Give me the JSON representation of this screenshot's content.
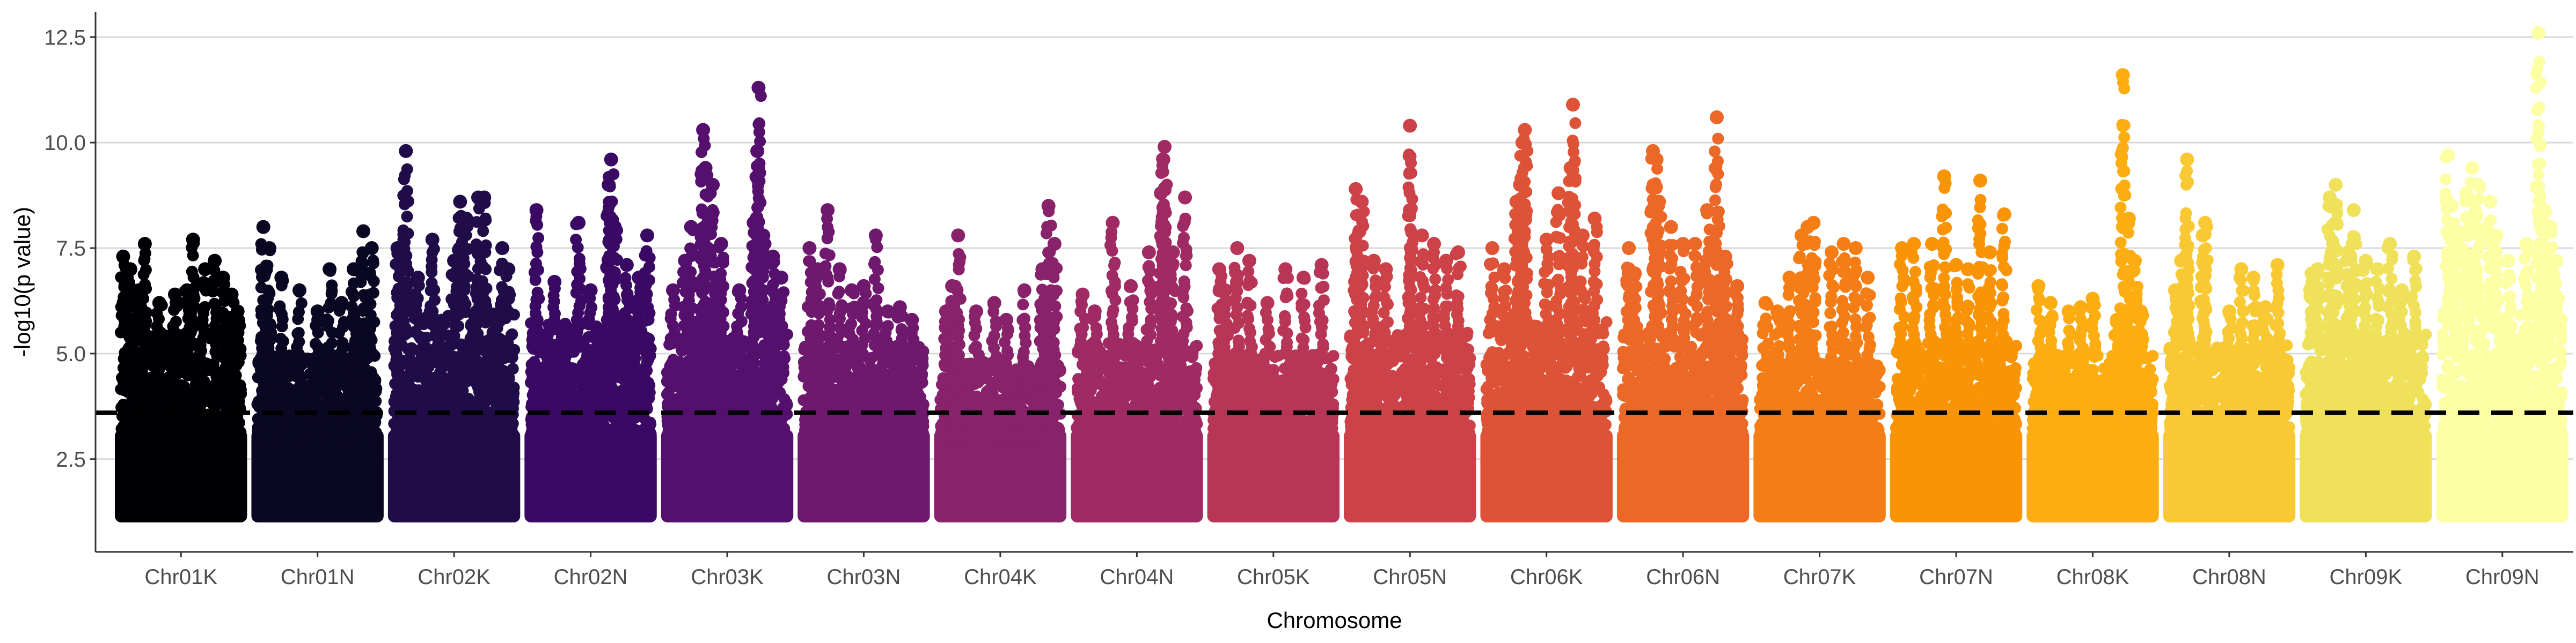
{
  "chart_data": {
    "type": "scatter",
    "subtype": "manhattan",
    "title": "",
    "xlabel": "Chromosome",
    "ylabel": "-log10(p value)",
    "categories": [
      "Chr01K",
      "Chr01N",
      "Chr02K",
      "Chr02N",
      "Chr03K",
      "Chr03N",
      "Chr04K",
      "Chr04N",
      "Chr05K",
      "Chr05N",
      "Chr06K",
      "Chr06N",
      "Chr07K",
      "Chr07N",
      "Chr08K",
      "Chr08N",
      "Chr09K",
      "Chr09N"
    ],
    "yticks": [
      2.5,
      5.0,
      7.5,
      10.0,
      12.5
    ],
    "ytick_labels": [
      "2.5",
      "5.0",
      "7.5",
      "10.0",
      "12.5"
    ],
    "ylim": [
      0.3,
      13.1
    ],
    "grid": "horizontal major",
    "threshold": {
      "value": 3.6,
      "style": "dashed",
      "color": "#000000"
    },
    "colors": [
      "#000004",
      "#0a0722",
      "#1f0c48",
      "#3a0963",
      "#550f6d",
      "#6f196e",
      "#88226a",
      "#a02a63",
      "#b73557",
      "#cc4248",
      "#de5238",
      "#ec6826",
      "#f57d15",
      "#fa9407",
      "#fcad12",
      "#f8c932",
      "#f0e15a",
      "#fcffa4"
    ],
    "series": [
      {
        "name": "Chr01K",
        "base_max": 5.5,
        "peaks": [
          [
            0.02,
            7.3
          ],
          [
            0.05,
            6.8
          ],
          [
            0.08,
            7.0
          ],
          [
            0.15,
            6.5
          ],
          [
            0.2,
            7.6
          ],
          [
            0.32,
            6.2
          ],
          [
            0.45,
            6.4
          ],
          [
            0.55,
            6.5
          ],
          [
            0.6,
            7.7
          ],
          [
            0.7,
            7.0
          ],
          [
            0.78,
            7.2
          ],
          [
            0.85,
            6.8
          ],
          [
            0.92,
            6.4
          ],
          [
            0.97,
            6.0
          ]
        ]
      },
      {
        "name": "Chr01N",
        "base_max": 5.0,
        "peaks": [
          [
            0.05,
            8.0
          ],
          [
            0.1,
            7.5
          ],
          [
            0.2,
            6.8
          ],
          [
            0.35,
            6.5
          ],
          [
            0.5,
            6.0
          ],
          [
            0.6,
            7.0
          ],
          [
            0.7,
            6.2
          ],
          [
            0.8,
            7.0
          ],
          [
            0.88,
            7.9
          ],
          [
            0.95,
            7.5
          ]
        ]
      },
      {
        "name": "Chr02K",
        "base_max": 6.0,
        "peaks": [
          [
            0.03,
            7.5
          ],
          [
            0.1,
            7.0
          ],
          [
            0.1,
            9.8
          ],
          [
            0.2,
            6.8
          ],
          [
            0.32,
            7.7
          ],
          [
            0.5,
            7.2
          ],
          [
            0.55,
            8.6
          ],
          [
            0.6,
            8.2
          ],
          [
            0.7,
            8.7
          ],
          [
            0.75,
            8.7
          ],
          [
            0.9,
            7.5
          ],
          [
            0.95,
            7.0
          ]
        ]
      },
      {
        "name": "Chr02N",
        "base_max": 5.8,
        "peaks": [
          [
            0.05,
            8.4
          ],
          [
            0.2,
            6.7
          ],
          [
            0.4,
            8.1
          ],
          [
            0.5,
            6.5
          ],
          [
            0.65,
            9.0
          ],
          [
            0.67,
            9.6
          ],
          [
            0.7,
            8.0
          ],
          [
            0.8,
            7.1
          ],
          [
            0.9,
            6.8
          ],
          [
            0.97,
            7.8
          ]
        ]
      },
      {
        "name": "Chr03K",
        "base_max": 5.5,
        "peaks": [
          [
            0.05,
            6.5
          ],
          [
            0.15,
            7.2
          ],
          [
            0.2,
            8.0
          ],
          [
            0.3,
            10.3
          ],
          [
            0.32,
            9.4
          ],
          [
            0.38,
            9.0
          ],
          [
            0.45,
            7.6
          ],
          [
            0.6,
            6.5
          ],
          [
            0.72,
            8.1
          ],
          [
            0.75,
            9.8
          ],
          [
            0.76,
            11.3
          ],
          [
            0.8,
            7.8
          ],
          [
            0.88,
            7.3
          ],
          [
            0.95,
            6.8
          ]
        ]
      },
      {
        "name": "Chr03N",
        "base_max": 5.2,
        "peaks": [
          [
            0.05,
            7.5
          ],
          [
            0.12,
            7.0
          ],
          [
            0.2,
            8.4
          ],
          [
            0.3,
            7.0
          ],
          [
            0.4,
            6.5
          ],
          [
            0.5,
            6.6
          ],
          [
            0.6,
            7.8
          ],
          [
            0.7,
            6.0
          ],
          [
            0.8,
            6.1
          ],
          [
            0.9,
            5.8
          ]
        ]
      },
      {
        "name": "Chr04K",
        "base_max": 4.8,
        "peaks": [
          [
            0.05,
            6.0
          ],
          [
            0.1,
            6.6
          ],
          [
            0.15,
            7.8
          ],
          [
            0.3,
            6.0
          ],
          [
            0.45,
            6.2
          ],
          [
            0.55,
            5.8
          ],
          [
            0.7,
            6.5
          ],
          [
            0.85,
            7.0
          ],
          [
            0.9,
            8.5
          ],
          [
            0.95,
            7.6
          ]
        ]
      },
      {
        "name": "Chr04N",
        "base_max": 5.3,
        "peaks": [
          [
            0.05,
            6.4
          ],
          [
            0.15,
            6.0
          ],
          [
            0.3,
            8.1
          ],
          [
            0.45,
            6.6
          ],
          [
            0.6,
            7.4
          ],
          [
            0.7,
            8.8
          ],
          [
            0.72,
            9.6
          ],
          [
            0.73,
            9.9
          ],
          [
            0.8,
            7.4
          ],
          [
            0.9,
            8.7
          ]
        ]
      },
      {
        "name": "Chr05K",
        "base_max": 5.0,
        "peaks": [
          [
            0.05,
            7.0
          ],
          [
            0.1,
            6.5
          ],
          [
            0.2,
            7.5
          ],
          [
            0.3,
            7.2
          ],
          [
            0.45,
            6.2
          ],
          [
            0.6,
            7.0
          ],
          [
            0.75,
            6.8
          ],
          [
            0.9,
            7.1
          ]
        ]
      },
      {
        "name": "Chr05N",
        "base_max": 5.5,
        "peaks": [
          [
            0.05,
            8.9
          ],
          [
            0.1,
            8.6
          ],
          [
            0.08,
            7.9
          ],
          [
            0.2,
            7.2
          ],
          [
            0.3,
            7.0
          ],
          [
            0.5,
            10.4
          ],
          [
            0.5,
            8.4
          ],
          [
            0.6,
            7.8
          ],
          [
            0.7,
            7.6
          ],
          [
            0.8,
            7.2
          ],
          [
            0.9,
            7.4
          ]
        ]
      },
      {
        "name": "Chr06K",
        "base_max": 5.8,
        "peaks": [
          [
            0.05,
            7.5
          ],
          [
            0.15,
            7.0
          ],
          [
            0.25,
            8.6
          ],
          [
            0.28,
            9.0
          ],
          [
            0.3,
            10.0
          ],
          [
            0.32,
            10.3
          ],
          [
            0.5,
            7.7
          ],
          [
            0.6,
            8.8
          ],
          [
            0.7,
            9.4
          ],
          [
            0.72,
            10.9
          ],
          [
            0.8,
            7.8
          ],
          [
            0.9,
            8.2
          ]
        ]
      },
      {
        "name": "Chr06N",
        "base_max": 5.5,
        "peaks": [
          [
            0.05,
            7.5
          ],
          [
            0.1,
            6.9
          ],
          [
            0.25,
            9.8
          ],
          [
            0.28,
            9.6
          ],
          [
            0.3,
            8.6
          ],
          [
            0.4,
            8.0
          ],
          [
            0.5,
            7.6
          ],
          [
            0.6,
            7.6
          ],
          [
            0.7,
            8.4
          ],
          [
            0.78,
            10.6
          ],
          [
            0.85,
            7.3
          ],
          [
            0.95,
            6.6
          ]
        ]
      },
      {
        "name": "Chr07K",
        "base_max": 4.8,
        "peaks": [
          [
            0.05,
            6.2
          ],
          [
            0.15,
            6.0
          ],
          [
            0.25,
            6.8
          ],
          [
            0.35,
            7.8
          ],
          [
            0.4,
            8.0
          ],
          [
            0.45,
            8.1
          ],
          [
            0.6,
            7.4
          ],
          [
            0.7,
            7.6
          ],
          [
            0.8,
            7.5
          ],
          [
            0.9,
            6.8
          ]
        ]
      },
      {
        "name": "Chr07N",
        "base_max": 5.3,
        "peaks": [
          [
            0.05,
            7.5
          ],
          [
            0.15,
            7.6
          ],
          [
            0.3,
            7.6
          ],
          [
            0.4,
            9.2
          ],
          [
            0.5,
            7.1
          ],
          [
            0.6,
            7.0
          ],
          [
            0.7,
            9.1
          ],
          [
            0.78,
            7.4
          ],
          [
            0.9,
            8.3
          ]
        ]
      },
      {
        "name": "Chr08K",
        "base_max": 5.0,
        "peaks": [
          [
            0.05,
            6.6
          ],
          [
            0.15,
            6.2
          ],
          [
            0.3,
            6.0
          ],
          [
            0.4,
            6.1
          ],
          [
            0.5,
            6.3
          ],
          [
            0.7,
            5.8
          ],
          [
            0.75,
            11.6
          ],
          [
            0.8,
            8.2
          ],
          [
            0.85,
            7.2
          ],
          [
            0.9,
            6.0
          ]
        ]
      },
      {
        "name": "Chr08N",
        "base_max": 5.2,
        "peaks": [
          [
            0.05,
            6.5
          ],
          [
            0.1,
            7.2
          ],
          [
            0.15,
            9.6
          ],
          [
            0.28,
            7.8
          ],
          [
            0.3,
            8.1
          ],
          [
            0.5,
            6.0
          ],
          [
            0.6,
            7.0
          ],
          [
            0.7,
            6.8
          ],
          [
            0.8,
            6.1
          ],
          [
            0.9,
            7.1
          ]
        ]
      },
      {
        "name": "Chr09K",
        "base_max": 5.5,
        "peaks": [
          [
            0.05,
            6.9
          ],
          [
            0.1,
            7.0
          ],
          [
            0.2,
            8.7
          ],
          [
            0.25,
            9.0
          ],
          [
            0.35,
            7.4
          ],
          [
            0.4,
            8.4
          ],
          [
            0.5,
            7.2
          ],
          [
            0.6,
            7.0
          ],
          [
            0.7,
            7.6
          ],
          [
            0.8,
            6.5
          ],
          [
            0.9,
            7.3
          ]
        ]
      },
      {
        "name": "Chr09N",
        "base_max": 6.0,
        "peaks": [
          [
            0.05,
            9.7
          ],
          [
            0.08,
            8.5
          ],
          [
            0.12,
            7.9
          ],
          [
            0.2,
            8.8
          ],
          [
            0.25,
            9.4
          ],
          [
            0.3,
            9.0
          ],
          [
            0.4,
            8.6
          ],
          [
            0.45,
            7.8
          ],
          [
            0.55,
            7.2
          ],
          [
            0.7,
            7.6
          ],
          [
            0.8,
            12.6
          ],
          [
            0.85,
            8.4
          ],
          [
            0.9,
            8.0
          ],
          [
            0.95,
            7.2
          ]
        ]
      }
    ]
  }
}
